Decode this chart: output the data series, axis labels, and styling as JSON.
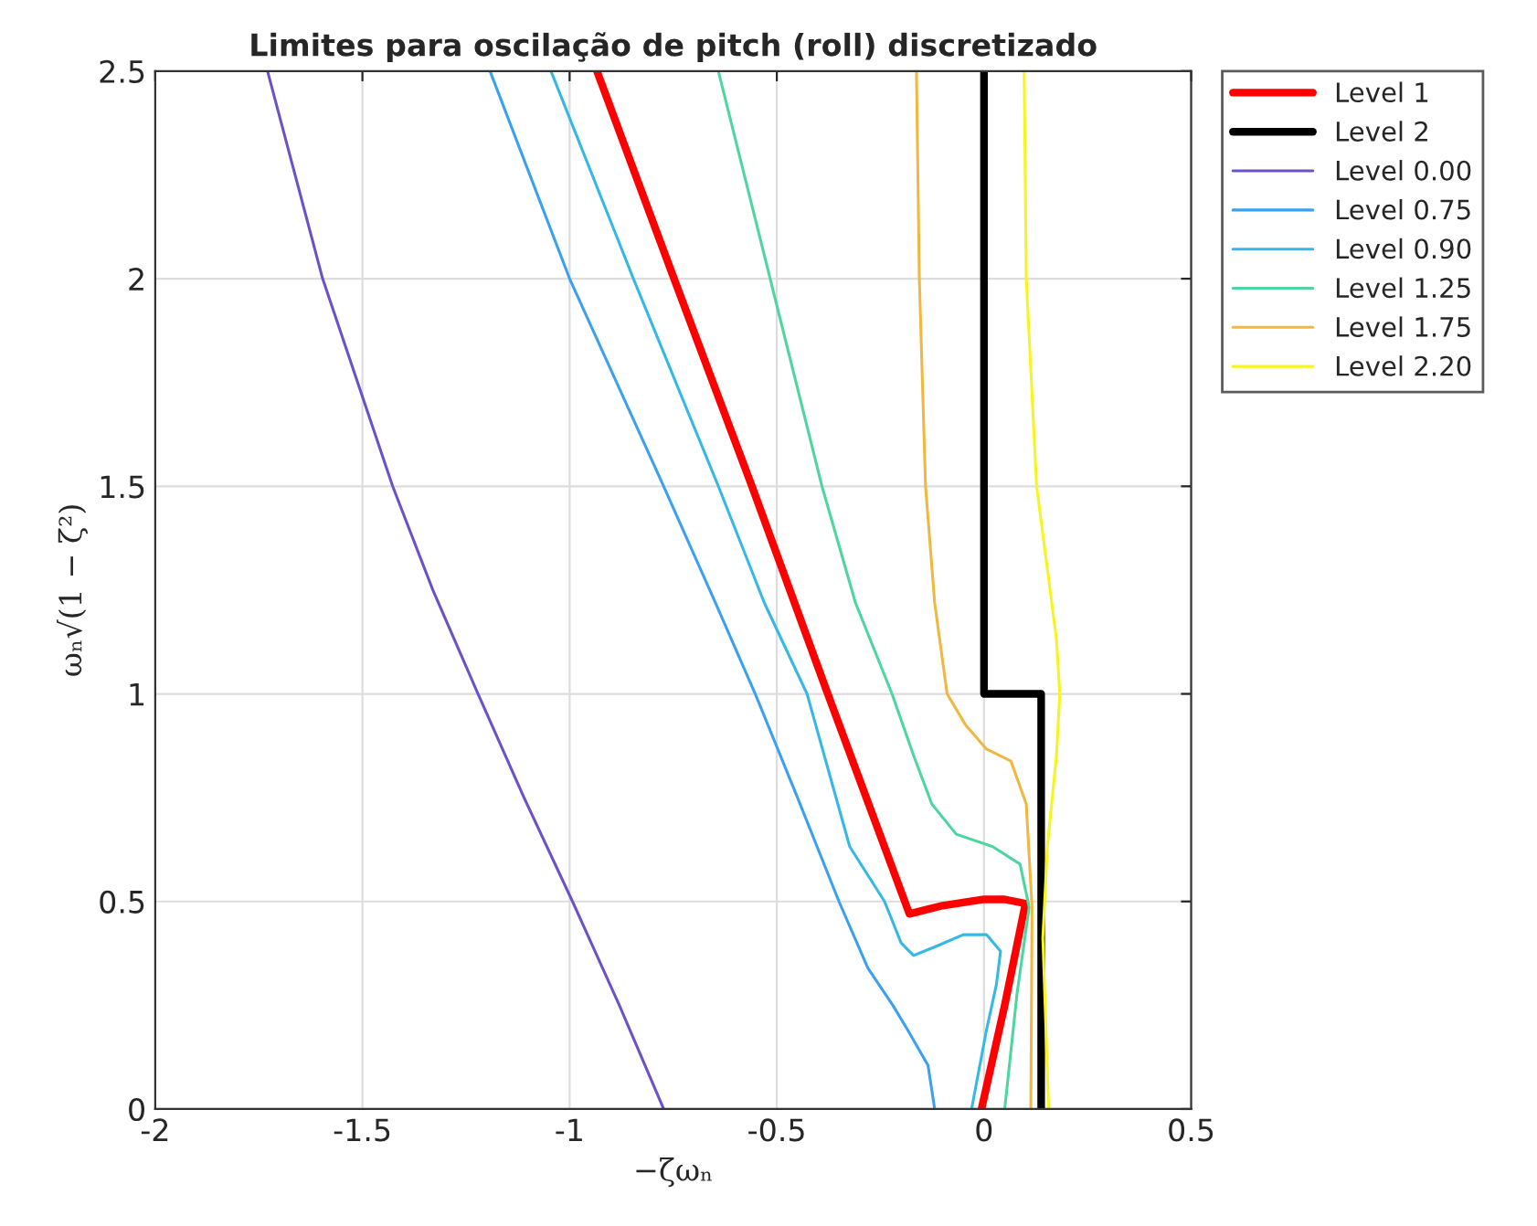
{
  "chart_data": {
    "type": "line",
    "title": "Limites para oscilação de pitch (roll) discretizado",
    "xlabel": "−ζωₙ",
    "ylabel": "ωₙ√(1 − ζ²)",
    "xlim": [
      -2,
      0.5
    ],
    "ylim": [
      0,
      2.5
    ],
    "xticks": [
      -2,
      -1.5,
      -1,
      -0.5,
      0,
      0.5
    ],
    "yticks": [
      0,
      0.5,
      1,
      1.5,
      2,
      2.5
    ],
    "grid": true,
    "legend": "top right",
    "line_style": "solid",
    "marker": "none",
    "series": [
      {
        "name": "Level 1",
        "color": "#ff0000",
        "x": [
          -0.934,
          -0.748,
          -0.56,
          -0.377,
          -0.18,
          -0.1,
          0,
          0.05,
          0.1,
          0.05,
          -0.006
        ],
        "values": [
          2.5,
          2,
          1.5,
          1,
          0.47,
          0.49,
          0.505,
          0.505,
          0.495,
          0.25,
          0
        ]
      },
      {
        "name": "Level 2",
        "color": "#000000",
        "x": [
          0,
          0,
          0.138,
          0.138
        ],
        "values": [
          2.5,
          1,
          1,
          0
        ]
      },
      {
        "name": "Level 0.00",
        "color": "#6b52c8",
        "x": [
          -1.729,
          -1.596,
          -1.427,
          -1.33,
          -1.221,
          -1.11,
          -0.993,
          -0.88,
          -0.773
        ],
        "values": [
          2.5,
          2,
          1.5,
          1.25,
          1,
          0.75,
          0.5,
          0.25,
          0
        ]
      },
      {
        "name": "Level 0.75",
        "color": "#3ba0f0",
        "x": [
          -1.192,
          -1.0,
          -0.773,
          -0.648,
          -0.552,
          -0.45,
          -0.35,
          -0.28,
          -0.22,
          -0.185,
          -0.135,
          -0.119
        ],
        "values": [
          2.5,
          2,
          1.5,
          1.219,
          1,
          0.75,
          0.5,
          0.339,
          0.25,
          0.192,
          0.105,
          0
        ]
      },
      {
        "name": "Level 0.90",
        "color": "#36b8e6",
        "x": [
          -1.045,
          -0.846,
          -0.641,
          -0.53,
          -0.427,
          -0.324,
          -0.24,
          -0.2,
          -0.17,
          -0.12,
          -0.05,
          0.006,
          0.04,
          0.03,
          0.006,
          -0.03
        ],
        "values": [
          2.5,
          2,
          1.5,
          1.219,
          1,
          0.632,
          0.5,
          0.4,
          0.37,
          0.39,
          0.42,
          0.42,
          0.38,
          0.3,
          0.19,
          0
        ]
      },
      {
        "name": "Level 1.25",
        "color": "#4dd6a0",
        "x": [
          -0.641,
          -0.516,
          -0.391,
          -0.31,
          -0.222,
          -0.17,
          -0.126,
          -0.067,
          0.021,
          0.087,
          0.109,
          0.08,
          0.05
        ],
        "values": [
          2.5,
          2,
          1.5,
          1.219,
          1,
          0.852,
          0.735,
          0.662,
          0.632,
          0.59,
          0.486,
          0.28,
          0
        ]
      },
      {
        "name": "Level 1.75",
        "color": "#f0b840",
        "x": [
          -0.163,
          -0.156,
          -0.141,
          -0.119,
          -0.089,
          -0.045,
          0.006,
          0.065,
          0.102,
          0.116,
          0.113
        ],
        "values": [
          2.5,
          2,
          1.5,
          1.219,
          1,
          0.926,
          0.867,
          0.838,
          0.735,
          0.486,
          0
        ]
      },
      {
        "name": "Level 2.20",
        "color": "#f5f520",
        "x": [
          0.097,
          0.102,
          0.127,
          0.175,
          0.183,
          0.175,
          0.153,
          0.142,
          0.156
        ],
        "values": [
          2.5,
          2,
          1.5,
          1.131,
          1,
          0.852,
          0.632,
          0.412,
          0
        ]
      }
    ]
  }
}
